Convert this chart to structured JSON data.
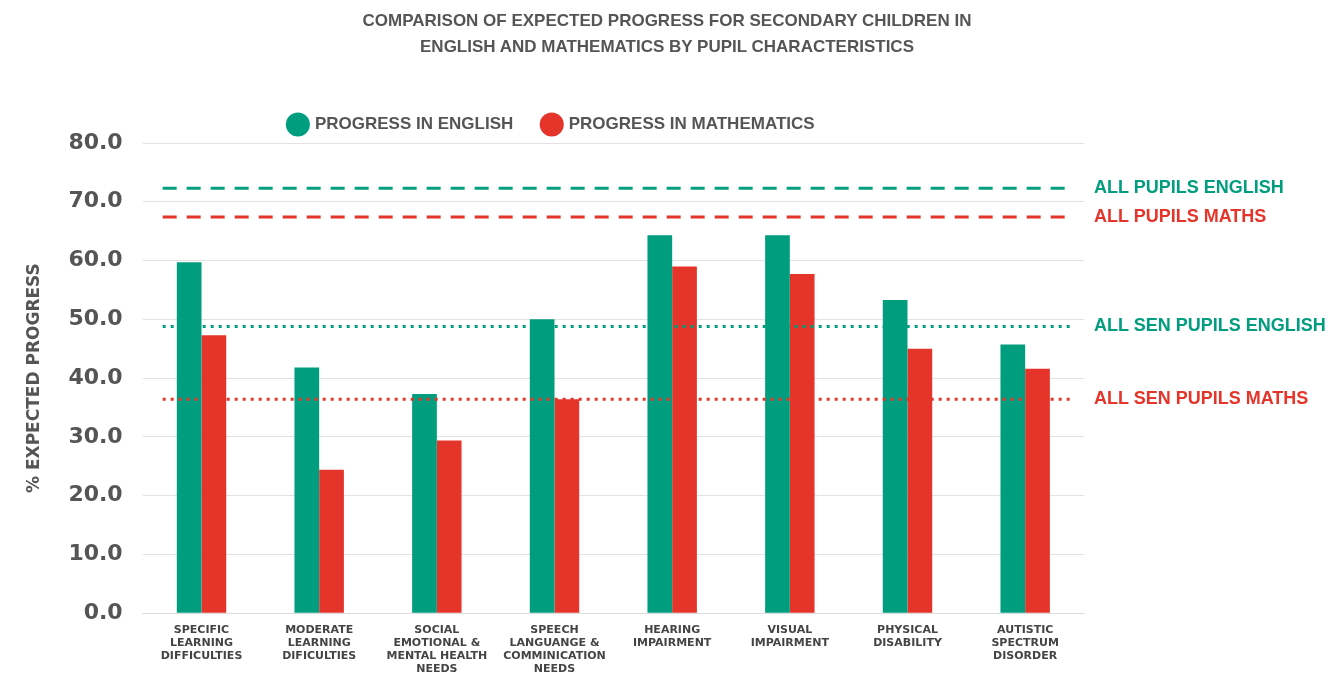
{
  "chart_data": {
    "type": "bar",
    "title": "COMPARISON OF EXPECTED PROGRESS FOR SECONDARY CHILDREN IN ENGLISH AND MATHEMATICS BY PUPIL CHARACTERISTICS",
    "ylabel": "% EXPECTED PROGRESS",
    "categories": [
      "SPECIFIC LEARNING DIFFICULTIES",
      "MODERATE LEARNING DIFICULTIES",
      "SOCIAL EMOTIONAL & MENTAL HEALTH NEEDS",
      "SPEECH LANGUANGE & COMMINICATION NEEDS",
      "HEARING IMPAIRMENT",
      "VISUAL IMPAIRMENT",
      "PHYSICAL DISABILITY",
      "AUTISTIC SPECTRUM DISORDER"
    ],
    "series": [
      {
        "name": "PROGRESS IN ENGLISH",
        "color": "#009e7e",
        "values": [
          59.7,
          41.8,
          37.3,
          50.0,
          64.3,
          64.3,
          53.3,
          45.7
        ]
      },
      {
        "name": "PROGRESS IN MATHEMATICS",
        "color": "#e5352b",
        "values": [
          47.3,
          24.4,
          29.4,
          36.4,
          59.0,
          57.7,
          45.0,
          41.6
        ]
      }
    ],
    "ylim": [
      0,
      80
    ],
    "yticks": [
      {
        "value": 0,
        "label": "0.0"
      },
      {
        "value": 10,
        "label": "10.0"
      },
      {
        "value": 20,
        "label": "20.0"
      },
      {
        "value": 30,
        "label": "30.0"
      },
      {
        "value": 40,
        "label": "40.0"
      },
      {
        "value": 50,
        "label": "50.0"
      },
      {
        "value": 60,
        "label": "60.0"
      },
      {
        "value": 70,
        "label": "70.0"
      },
      {
        "value": 80,
        "label": "80.0"
      }
    ],
    "ref_lines": [
      {
        "axis": "y",
        "value": 72.3,
        "label": "ALL PUPILS ENGLISH",
        "color": "#009e7e",
        "line_style": "dashed"
      },
      {
        "axis": "y",
        "value": 67.4,
        "label": "ALL PUPILS MATHS",
        "color": "#e5352b",
        "line_style": "dashed"
      },
      {
        "axis": "y",
        "value": 48.8,
        "label": "ALL SEN PUPILS ENGLISH",
        "color": "#009e7e",
        "line_style": "dotted"
      },
      {
        "axis": "y",
        "value": 36.4,
        "label": "ALL SEN PUPILS MATHS",
        "color": "#e5352b",
        "line_style": "dotted"
      }
    ],
    "grid": "y",
    "legend": "top"
  }
}
